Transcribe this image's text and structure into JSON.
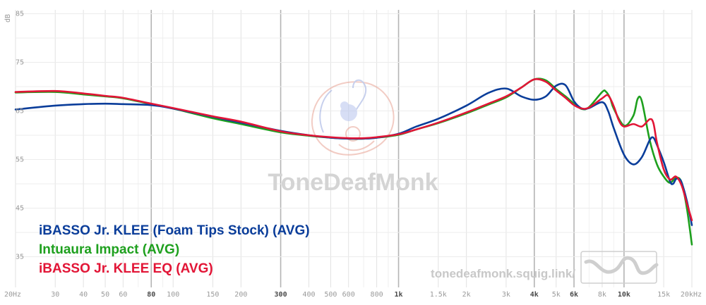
{
  "chart_data": {
    "type": "line",
    "xscale": "log",
    "xlim": [
      20,
      20000
    ],
    "ylim": [
      32,
      87
    ],
    "ylabel": "dB",
    "grid": true,
    "x_ticks": [
      {
        "v": 20,
        "label": "20Hz",
        "bold": false
      },
      {
        "v": 30,
        "label": "30",
        "bold": false
      },
      {
        "v": 40,
        "label": "40",
        "bold": false
      },
      {
        "v": 50,
        "label": "50",
        "bold": false
      },
      {
        "v": 60,
        "label": "60",
        "bold": false
      },
      {
        "v": 80,
        "label": "80",
        "bold": true
      },
      {
        "v": 100,
        "label": "100",
        "bold": false
      },
      {
        "v": 150,
        "label": "150",
        "bold": false
      },
      {
        "v": 200,
        "label": "200",
        "bold": false
      },
      {
        "v": 300,
        "label": "300",
        "bold": true
      },
      {
        "v": 400,
        "label": "400",
        "bold": false
      },
      {
        "v": 500,
        "label": "500",
        "bold": false
      },
      {
        "v": 600,
        "label": "600",
        "bold": false
      },
      {
        "v": 800,
        "label": "800",
        "bold": false
      },
      {
        "v": 1000,
        "label": "1k",
        "bold": true
      },
      {
        "v": 1500,
        "label": "1.5k",
        "bold": false
      },
      {
        "v": 2000,
        "label": "2k",
        "bold": false
      },
      {
        "v": 3000,
        "label": "3k",
        "bold": false
      },
      {
        "v": 4000,
        "label": "4k",
        "bold": true
      },
      {
        "v": 5000,
        "label": "5k",
        "bold": false
      },
      {
        "v": 6000,
        "label": "6k",
        "bold": true
      },
      {
        "v": 8000,
        "label": "8k",
        "bold": false
      },
      {
        "v": 10000,
        "label": "10k",
        "bold": true
      },
      {
        "v": 15000,
        "label": "15k",
        "bold": false
      },
      {
        "v": 20000,
        "label": "20kHz",
        "bold": false
      }
    ],
    "y_ticks": [
      {
        "v": 85,
        "label": "85"
      },
      {
        "v": 75,
        "label": "75"
      },
      {
        "v": 65,
        "label": "65"
      },
      {
        "v": 55,
        "label": "55"
      },
      {
        "v": 45,
        "label": "45"
      },
      {
        "v": 35,
        "label": "35"
      }
    ],
    "series": [
      {
        "name": "iBASSO Jr. KLEE (Foam Tips Stock) (AVG)",
        "color": "#0a3d9a",
        "points": [
          [
            20,
            65.3
          ],
          [
            30,
            66.1
          ],
          [
            40,
            66.4
          ],
          [
            50,
            66.5
          ],
          [
            60,
            66.4
          ],
          [
            80,
            66.2
          ],
          [
            100,
            65.5
          ],
          [
            150,
            63.8
          ],
          [
            200,
            62.6
          ],
          [
            300,
            60.9
          ],
          [
            400,
            60.0
          ],
          [
            500,
            59.5
          ],
          [
            600,
            59.3
          ],
          [
            700,
            59.3
          ],
          [
            800,
            59.5
          ],
          [
            1000,
            60.3
          ],
          [
            1200,
            61.8
          ],
          [
            1500,
            63.4
          ],
          [
            2000,
            66.1
          ],
          [
            2500,
            68.7
          ],
          [
            3000,
            69.6
          ],
          [
            3500,
            68.0
          ],
          [
            4000,
            67.3
          ],
          [
            4500,
            68.0
          ],
          [
            5000,
            70.2
          ],
          [
            5500,
            70.3
          ],
          [
            6000,
            67.0
          ],
          [
            6500,
            65.5
          ],
          [
            7000,
            65.6
          ],
          [
            8000,
            66.8
          ],
          [
            8500,
            65.0
          ],
          [
            9000,
            61.5
          ],
          [
            10000,
            56.0
          ],
          [
            11000,
            54.0
          ],
          [
            12000,
            55.5
          ],
          [
            13000,
            59.0
          ],
          [
            13500,
            59.5
          ],
          [
            14000,
            58.0
          ],
          [
            15000,
            54.5
          ],
          [
            16000,
            50.5
          ],
          [
            16500,
            50.0
          ],
          [
            17000,
            51.0
          ],
          [
            17500,
            51.0
          ],
          [
            18000,
            50.3
          ],
          [
            19000,
            46.5
          ],
          [
            20000,
            41.5
          ]
        ]
      },
      {
        "name": "Intuaura Impact (AVG)",
        "color": "#1ea01e",
        "points": [
          [
            20,
            68.8
          ],
          [
            30,
            68.9
          ],
          [
            40,
            68.4
          ],
          [
            50,
            68.0
          ],
          [
            60,
            67.6
          ],
          [
            80,
            66.4
          ],
          [
            100,
            65.5
          ],
          [
            150,
            63.5
          ],
          [
            200,
            62.3
          ],
          [
            300,
            60.6
          ],
          [
            400,
            59.9
          ],
          [
            500,
            59.5
          ],
          [
            600,
            59.3
          ],
          [
            700,
            59.3
          ],
          [
            800,
            59.5
          ],
          [
            1000,
            60.1
          ],
          [
            1200,
            61.2
          ],
          [
            1500,
            62.5
          ],
          [
            2000,
            64.5
          ],
          [
            2500,
            66.3
          ],
          [
            3000,
            67.8
          ],
          [
            3500,
            69.8
          ],
          [
            4000,
            71.5
          ],
          [
            4500,
            71.3
          ],
          [
            5000,
            69.5
          ],
          [
            5500,
            68.0
          ],
          [
            6000,
            66.5
          ],
          [
            6500,
            65.4
          ],
          [
            7000,
            65.8
          ],
          [
            8000,
            68.9
          ],
          [
            8300,
            69.0
          ],
          [
            8700,
            67.5
          ],
          [
            9000,
            65.5
          ],
          [
            10000,
            62.0
          ],
          [
            11000,
            64.0
          ],
          [
            11500,
            67.5
          ],
          [
            12000,
            67.0
          ],
          [
            13000,
            59.0
          ],
          [
            14000,
            54.0
          ],
          [
            15000,
            51.5
          ],
          [
            16000,
            50.2
          ],
          [
            17000,
            51.3
          ],
          [
            18000,
            50.3
          ],
          [
            19000,
            45.0
          ],
          [
            20000,
            37.5
          ]
        ]
      },
      {
        "name": "iBASSO Jr. KLEE EQ (AVG)",
        "color": "#e21536",
        "points": [
          [
            20,
            68.9
          ],
          [
            30,
            69.1
          ],
          [
            40,
            68.6
          ],
          [
            50,
            68.1
          ],
          [
            60,
            67.7
          ],
          [
            80,
            66.5
          ],
          [
            100,
            65.6
          ],
          [
            150,
            63.9
          ],
          [
            200,
            62.8
          ],
          [
            300,
            60.8
          ],
          [
            400,
            60.0
          ],
          [
            500,
            59.6
          ],
          [
            600,
            59.4
          ],
          [
            700,
            59.4
          ],
          [
            800,
            59.6
          ],
          [
            1000,
            60.2
          ],
          [
            1200,
            61.2
          ],
          [
            1500,
            62.6
          ],
          [
            2000,
            64.7
          ],
          [
            2500,
            66.5
          ],
          [
            3000,
            68.0
          ],
          [
            3500,
            69.8
          ],
          [
            4000,
            71.5
          ],
          [
            4500,
            71.0
          ],
          [
            5000,
            69.2
          ],
          [
            5500,
            67.7
          ],
          [
            6000,
            66.2
          ],
          [
            6500,
            65.5
          ],
          [
            7000,
            65.7
          ],
          [
            8000,
            67.6
          ],
          [
            8500,
            68.2
          ],
          [
            9000,
            66.0
          ],
          [
            9500,
            63.0
          ],
          [
            10000,
            61.8
          ],
          [
            11000,
            62.3
          ],
          [
            12000,
            61.8
          ],
          [
            13000,
            63.3
          ],
          [
            13500,
            62.5
          ],
          [
            14000,
            58.5
          ],
          [
            15000,
            53.0
          ],
          [
            16000,
            50.9
          ],
          [
            17000,
            51.5
          ],
          [
            18000,
            49.7
          ],
          [
            19000,
            46.0
          ],
          [
            20000,
            42.5
          ]
        ]
      }
    ]
  },
  "watermark": {
    "brand": "ToneDeafMonk",
    "url": "tonedeafmonk.squig.link/"
  }
}
